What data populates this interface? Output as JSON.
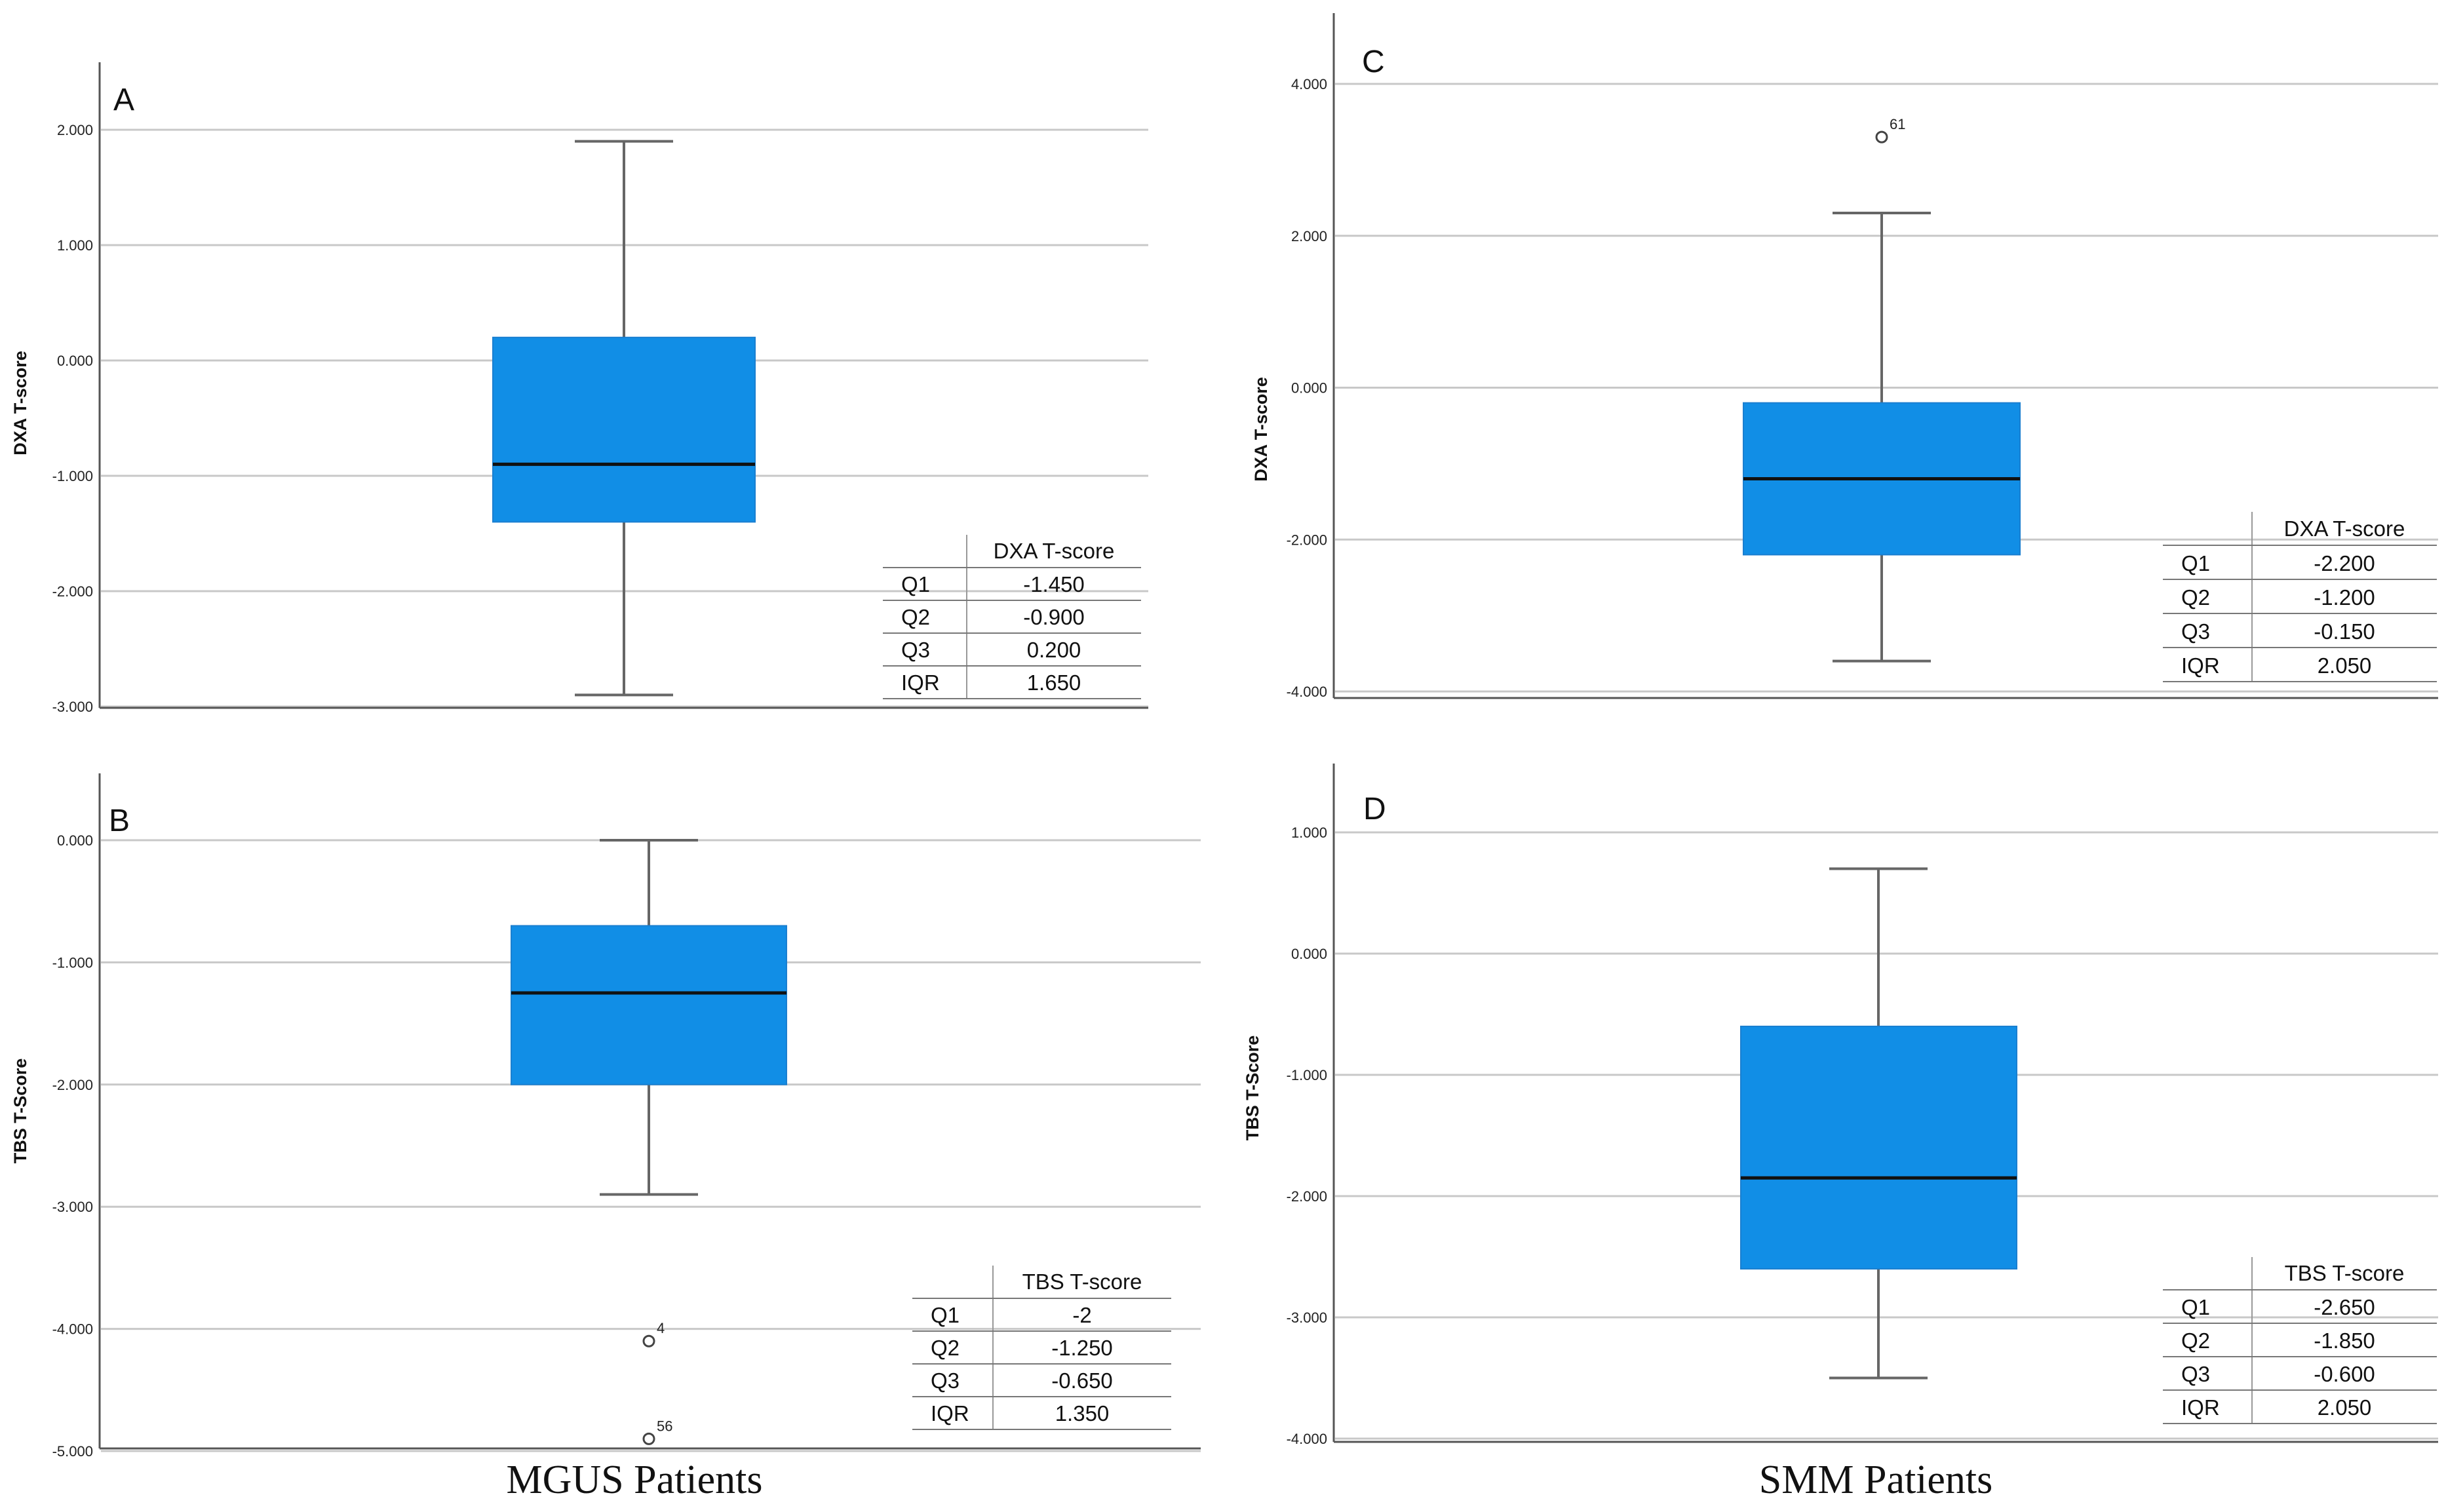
{
  "groups": [
    "MGUS Patients",
    "SMM Patients"
  ],
  "chart_data": [
    {
      "type": "box",
      "panel": "A",
      "group": "MGUS Patients",
      "ylabel": "DXA T-score",
      "ylim": [
        -3,
        2.6
      ],
      "yticks": [
        2,
        1,
        0,
        -1,
        -2,
        -3
      ],
      "tick_labels": [
        "2.000",
        "1.000",
        "0.000",
        "-1.000",
        "-2.000",
        "-3.000"
      ],
      "box": {
        "whisker_low": -2.9,
        "q1": -1.4,
        "median": -0.9,
        "q3": 0.2,
        "whisker_high": 1.9
      },
      "outliers": [],
      "table": {
        "header": "DXA T-score",
        "rows": [
          [
            "Q1",
            "-1.450"
          ],
          [
            "Q2",
            "-0.900"
          ],
          [
            "Q3",
            "0.200"
          ],
          [
            "IQR",
            "1.650"
          ]
        ]
      }
    },
    {
      "type": "box",
      "panel": "B",
      "group": "MGUS Patients",
      "ylabel": "TBS T-Score",
      "ylim": [
        -5,
        0.55
      ],
      "yticks": [
        0,
        -1,
        -2,
        -3,
        -4,
        -5
      ],
      "tick_labels": [
        "0.000",
        "-1.000",
        "-2.000",
        "-3.000",
        "-4.000",
        "-5.000"
      ],
      "box": {
        "whisker_low": -2.9,
        "q1": -2.0,
        "median": -1.25,
        "q3": -0.7,
        "whisker_high": 0.0
      },
      "outliers": [
        {
          "value": -4.1,
          "label": "4"
        },
        {
          "value": -4.9,
          "label": "56"
        }
      ],
      "table": {
        "header": "TBS T-score",
        "rows": [
          [
            "Q1",
            "-2"
          ],
          [
            "Q2",
            "-1.250"
          ],
          [
            "Q3",
            "-0.650"
          ],
          [
            "IQR",
            "1.350"
          ]
        ]
      }
    },
    {
      "type": "box",
      "panel": "C",
      "group": "SMM Patients",
      "ylabel": "DXA T-score",
      "ylim": [
        -4,
        4.9
      ],
      "yticks": [
        4,
        2,
        0,
        -2,
        -4
      ],
      "tick_labels": [
        "4.000",
        "2.000",
        "0.000",
        "-2.000",
        "-4.000"
      ],
      "box": {
        "whisker_low": -3.6,
        "q1": -2.2,
        "median": -1.2,
        "q3": -0.2,
        "whisker_high": 2.3
      },
      "outliers": [
        {
          "value": 3.3,
          "label": "61"
        }
      ],
      "table": {
        "header": "DXA T-score",
        "rows": [
          [
            "Q1",
            "-2.200"
          ],
          [
            "Q2",
            "-1.200"
          ],
          [
            "Q3",
            "-0.150"
          ],
          [
            "IQR",
            "2.050"
          ]
        ]
      }
    },
    {
      "type": "box",
      "panel": "D",
      "group": "SMM Patients",
      "ylabel": "TBS T-Score",
      "ylim": [
        -4,
        1.55
      ],
      "yticks": [
        1,
        0,
        -1,
        -2,
        -3,
        -4
      ],
      "tick_labels": [
        "1.000",
        "0.000",
        "-1.000",
        "-2.000",
        "-3.000",
        "-4.000"
      ],
      "box": {
        "whisker_low": -3.5,
        "q1": -2.6,
        "median": -1.85,
        "q3": -0.6,
        "whisker_high": 0.7
      },
      "outliers": [],
      "table": {
        "header": "TBS T-score",
        "rows": [
          [
            "Q1",
            "-2.650"
          ],
          [
            "Q2",
            "-1.850"
          ],
          [
            "Q3",
            "-0.600"
          ],
          [
            "IQR",
            "2.050"
          ]
        ]
      }
    }
  ]
}
